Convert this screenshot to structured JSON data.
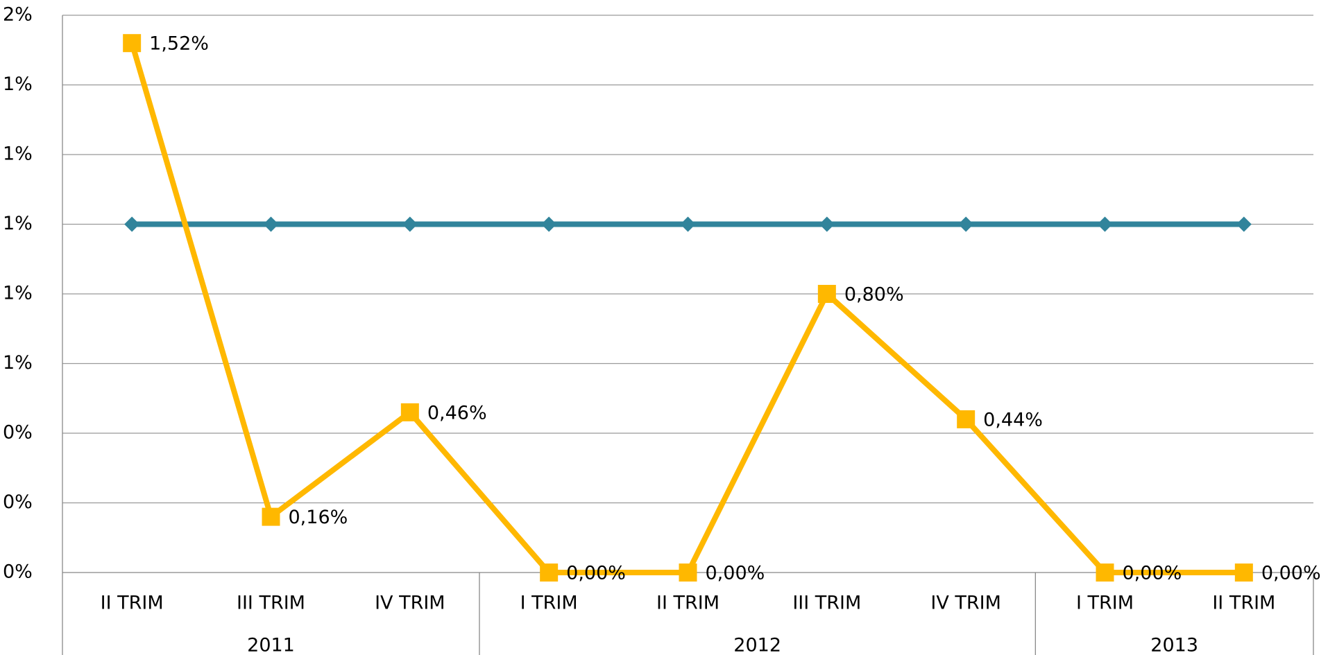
{
  "chart_data": {
    "type": "line",
    "categories": [
      "II TRIM",
      "III TRIM",
      "IV TRIM",
      "I TRIM",
      "II TRIM",
      "III TRIM",
      "IV TRIM",
      "I TRIM",
      "II TRIM"
    ],
    "category_groups": [
      {
        "label": "2011",
        "size": 3
      },
      {
        "label": "2012",
        "size": 4
      },
      {
        "label": "2013",
        "size": 2
      }
    ],
    "series": [
      {
        "color": "#31849b",
        "marker": "diamond",
        "values": [
          1,
          1,
          1,
          1,
          1,
          1,
          1,
          1,
          1
        ]
      },
      {
        "color": "#ffb800",
        "marker": "square",
        "values": [
          1.52,
          0.16,
          0.46,
          0,
          0,
          0.8,
          0.44,
          0,
          0
        ],
        "value_labels": [
          "1,52%",
          "0,16%",
          "0,46%",
          "0,00%",
          "0,00%",
          "0,80%",
          "0,44%",
          "0,00%",
          "0,00%"
        ]
      }
    ],
    "ylim": [
      0,
      1.6
    ],
    "yticks": [
      {
        "value": 0,
        "label": "0%"
      },
      {
        "value": 0.2,
        "label": "0%"
      },
      {
        "value": 0.4,
        "label": "0%"
      },
      {
        "value": 0.6,
        "label": "1%"
      },
      {
        "value": 0.8,
        "label": "1%"
      },
      {
        "value": 1.0,
        "label": "1%"
      },
      {
        "value": 1.2,
        "label": "1%"
      },
      {
        "value": 1.4,
        "label": "1%"
      },
      {
        "value": 1.6,
        "label": "2%"
      }
    ],
    "grid": true
  }
}
